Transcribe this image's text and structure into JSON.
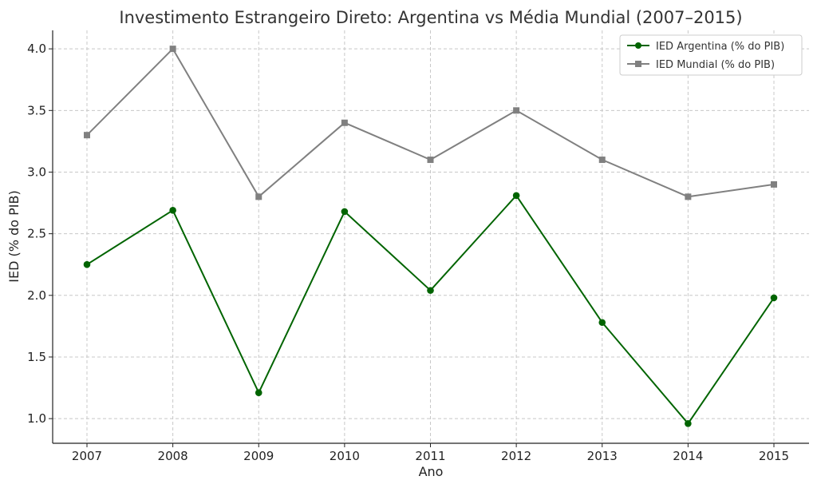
{
  "chart_data": {
    "type": "line",
    "title": "Investimento Estrangeiro Direto: Argentina vs Média Mundial (2007–2015)",
    "xlabel": "Ano",
    "ylabel": "IED (% do PIB)",
    "x": [
      "2007",
      "2008",
      "2009",
      "2010",
      "2011",
      "2012",
      "2013",
      "2014",
      "2015"
    ],
    "ylim": [
      0.8,
      4.15
    ],
    "yticks": [
      "1.0",
      "1.5",
      "2.0",
      "2.5",
      "3.0",
      "3.5",
      "4.0"
    ],
    "grid": true,
    "legend_position": "top-right",
    "series": [
      {
        "name": "IED Argentina (% do PIB)",
        "color": "#006400",
        "marker": "circle",
        "values": [
          2.25,
          2.69,
          1.21,
          2.68,
          2.04,
          2.81,
          1.78,
          0.96,
          1.98
        ]
      },
      {
        "name": "IED Mundial (% do PIB)",
        "color": "#808080",
        "marker": "square",
        "values": [
          3.3,
          4.0,
          2.8,
          3.4,
          3.1,
          3.5,
          3.1,
          2.8,
          2.9
        ]
      }
    ]
  }
}
